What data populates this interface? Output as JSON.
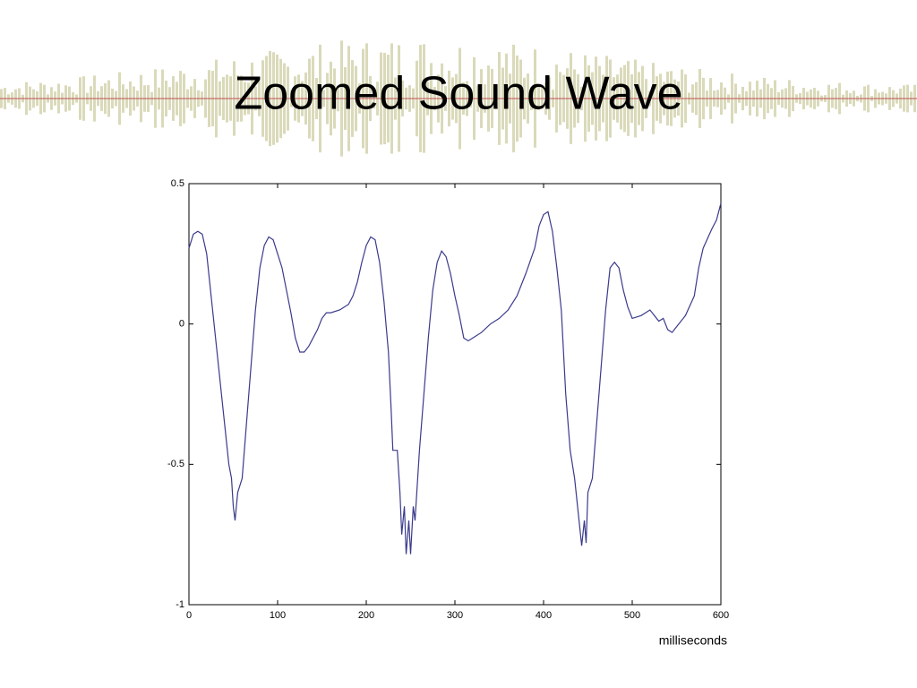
{
  "chart_data": {
    "type": "line",
    "title": "Zoomed Sound Wave",
    "xlabel": "milliseconds",
    "x": [
      0,
      5,
      10,
      15,
      20,
      25,
      30,
      35,
      40,
      45,
      48,
      50,
      52,
      55,
      60,
      65,
      70,
      75,
      80,
      85,
      90,
      95,
      100,
      105,
      110,
      115,
      120,
      125,
      130,
      135,
      140,
      145,
      150,
      155,
      160,
      170,
      180,
      185,
      190,
      195,
      200,
      205,
      210,
      215,
      220,
      225,
      228,
      230,
      235,
      238,
      240,
      243,
      245,
      248,
      250,
      253,
      255,
      260,
      265,
      270,
      275,
      280,
      285,
      290,
      295,
      300,
      305,
      310,
      315,
      320,
      330,
      340,
      350,
      360,
      370,
      380,
      390,
      395,
      400,
      405,
      410,
      415,
      420,
      425,
      430,
      435,
      440,
      443,
      446,
      448,
      450,
      455,
      460,
      465,
      470,
      475,
      480,
      485,
      490,
      495,
      500,
      510,
      520,
      530,
      535,
      540,
      545,
      550,
      560,
      570,
      575,
      580,
      590,
      595,
      600
    ],
    "series": [
      {
        "color": "#3a3a8c",
        "values": [
          0.27,
          0.32,
          0.33,
          0.32,
          0.25,
          0.1,
          -0.05,
          -0.2,
          -0.35,
          -0.5,
          -0.55,
          -0.65,
          -0.7,
          -0.6,
          -0.55,
          -0.35,
          -0.15,
          0.05,
          0.2,
          0.28,
          0.31,
          0.3,
          0.25,
          0.2,
          0.12,
          0.04,
          -0.05,
          -0.1,
          -0.1,
          -0.08,
          -0.05,
          -0.02,
          0.02,
          0.04,
          0.04,
          0.05,
          0.07,
          0.1,
          0.15,
          0.22,
          0.28,
          0.31,
          0.3,
          0.22,
          0.08,
          -0.1,
          -0.3,
          -0.45,
          -0.45,
          -0.6,
          -0.75,
          -0.65,
          -0.82,
          -0.7,
          -0.82,
          -0.65,
          -0.7,
          -0.45,
          -0.25,
          -0.05,
          0.12,
          0.22,
          0.26,
          0.24,
          0.18,
          0.1,
          0.03,
          -0.05,
          -0.06,
          -0.05,
          -0.03,
          0.0,
          0.02,
          0.05,
          0.1,
          0.18,
          0.27,
          0.35,
          0.39,
          0.4,
          0.33,
          0.2,
          0.05,
          -0.25,
          -0.45,
          -0.55,
          -0.7,
          -0.79,
          -0.7,
          -0.78,
          -0.6,
          -0.55,
          -0.35,
          -0.15,
          0.05,
          0.2,
          0.22,
          0.2,
          0.12,
          0.06,
          0.02,
          0.03,
          0.05,
          0.01,
          0.02,
          -0.02,
          -0.03,
          -0.01,
          0.03,
          0.1,
          0.2,
          0.27,
          0.34,
          0.37,
          0.43
        ]
      }
    ],
    "xlim": [
      0,
      600
    ],
    "xticks": [
      0,
      100,
      200,
      300,
      400,
      500,
      600
    ],
    "ylim": [
      -1,
      0.5
    ],
    "yticks": [
      0.5,
      0,
      -0.5,
      -1
    ]
  }
}
